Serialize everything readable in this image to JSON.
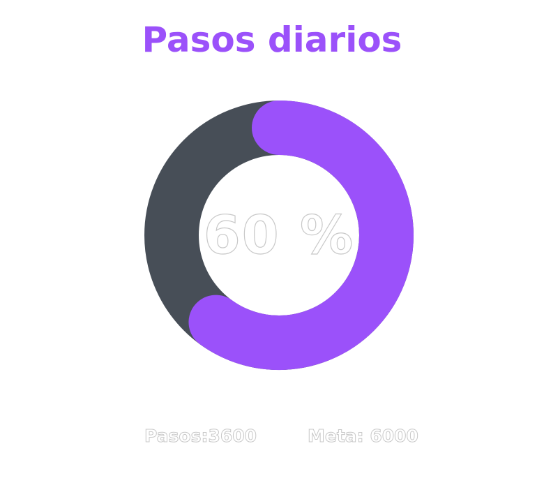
{
  "title": "Pasos diarios",
  "progress": {
    "percent_label": "60 %",
    "fraction": 0.6
  },
  "stats": {
    "steps_label": "Pasos:3600",
    "goal_label": "Meta: 6000"
  },
  "colors": {
    "accent": "#9b51fa",
    "track": "#474e57",
    "background": "#ffffff"
  }
}
